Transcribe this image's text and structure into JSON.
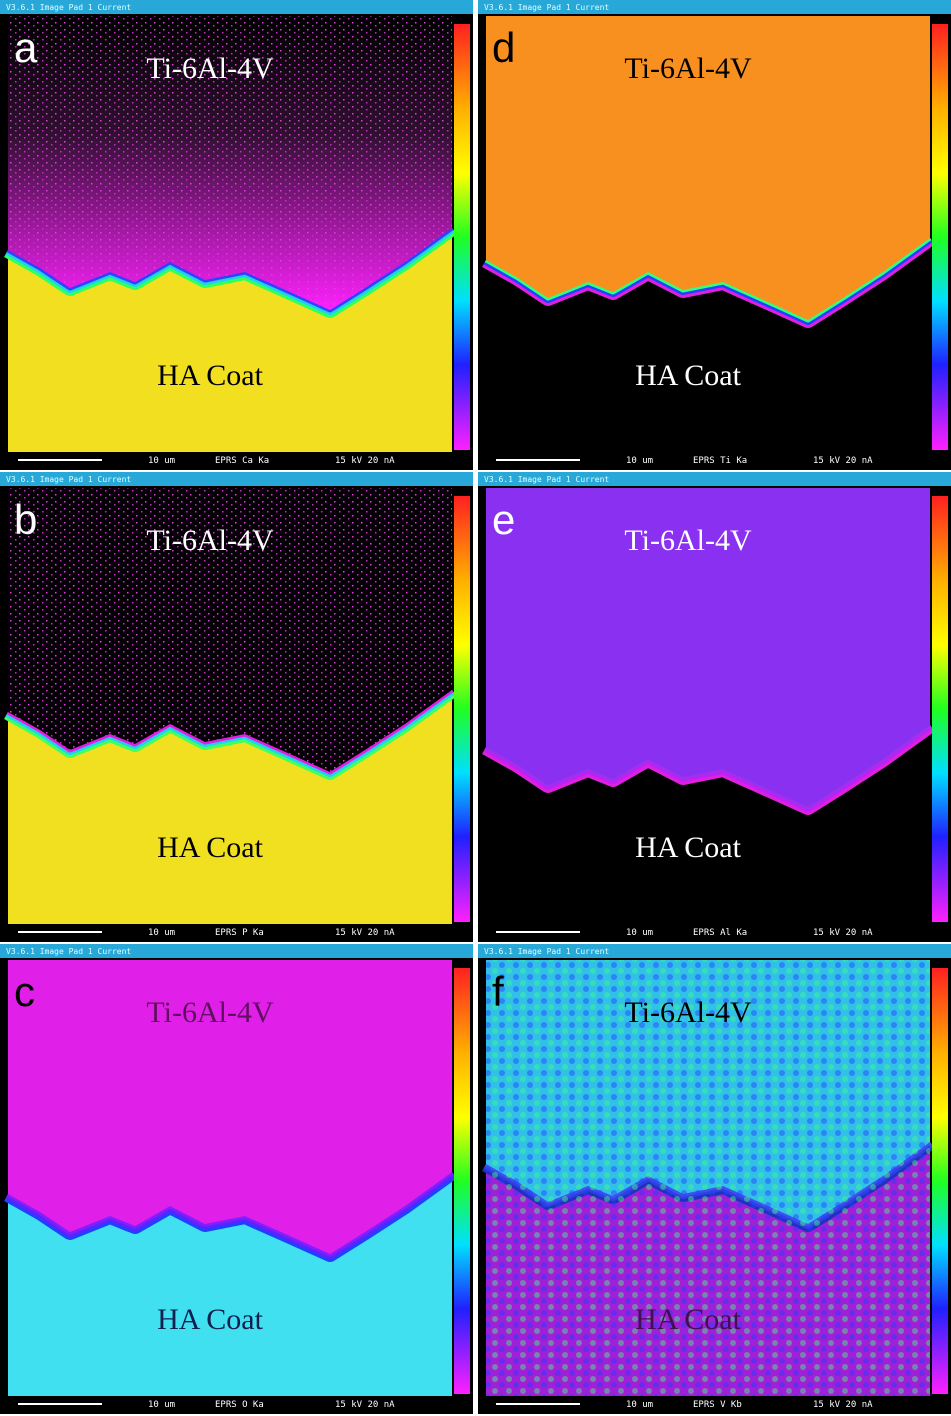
{
  "panels": [
    {
      "label": "a",
      "header": "V3.6.1 Image Pad 1 Current",
      "top_text": "Ti-6Al-4V",
      "bottom_text": "HA Coat",
      "scale": "10 um",
      "signal": "EPRS Ca Ka",
      "conditions": "15 kV 20 nA"
    },
    {
      "label": "b",
      "header": "V3.6.1 Image Pad 1 Current",
      "top_text": "Ti-6Al-4V",
      "bottom_text": "HA Coat",
      "scale": "10 um",
      "signal": "EPRS P Ka",
      "conditions": "15 kV 20 nA"
    },
    {
      "label": "c",
      "header": "V3.6.1 Image Pad 1 Current",
      "top_text": "Ti-6Al-4V",
      "bottom_text": "HA Coat",
      "scale": "10 um",
      "signal": "EPRS O Ka",
      "conditions": "15 kV 20 nA"
    },
    {
      "label": "d",
      "header": "V3.6.1 Image Pad 1 Current",
      "top_text": "Ti-6Al-4V",
      "bottom_text": "HA Coat",
      "scale": "10 um",
      "signal": "EPRS Ti Ka",
      "conditions": "15 kV 20 nA"
    },
    {
      "label": "e",
      "header": "V3.6.1 Image Pad 1 Current",
      "top_text": "Ti-6Al-4V",
      "bottom_text": "HA Coat",
      "scale": "10 um",
      "signal": "EPRS Al Ka",
      "conditions": "15 kV 20 nA"
    },
    {
      "label": "f",
      "header": "V3.6.1 Image Pad 1 Current",
      "top_text": "Ti-6Al-4V",
      "bottom_text": "HA Coat",
      "scale": "10 um",
      "signal": "EPRS V Kb",
      "conditions": "15 kV 20 nA"
    }
  ]
}
